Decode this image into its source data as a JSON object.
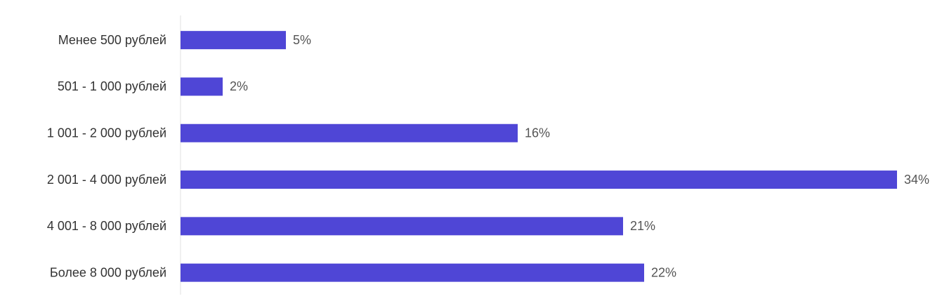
{
  "chart_data": {
    "type": "bar",
    "orientation": "horizontal",
    "categories": [
      "Менее 500 рублей",
      "501 - 1 000 рублей",
      "1 001 - 2 000 рублей",
      "2 001 - 4 000 рублей",
      "4 001 - 8 000 рублей",
      "Более 8 000 рублей"
    ],
    "values": [
      5,
      2,
      16,
      34,
      21,
      22
    ],
    "value_labels": [
      "5%",
      "2%",
      "16%",
      "34%",
      "21%",
      "22%"
    ],
    "color": "#4f46d6"
  }
}
